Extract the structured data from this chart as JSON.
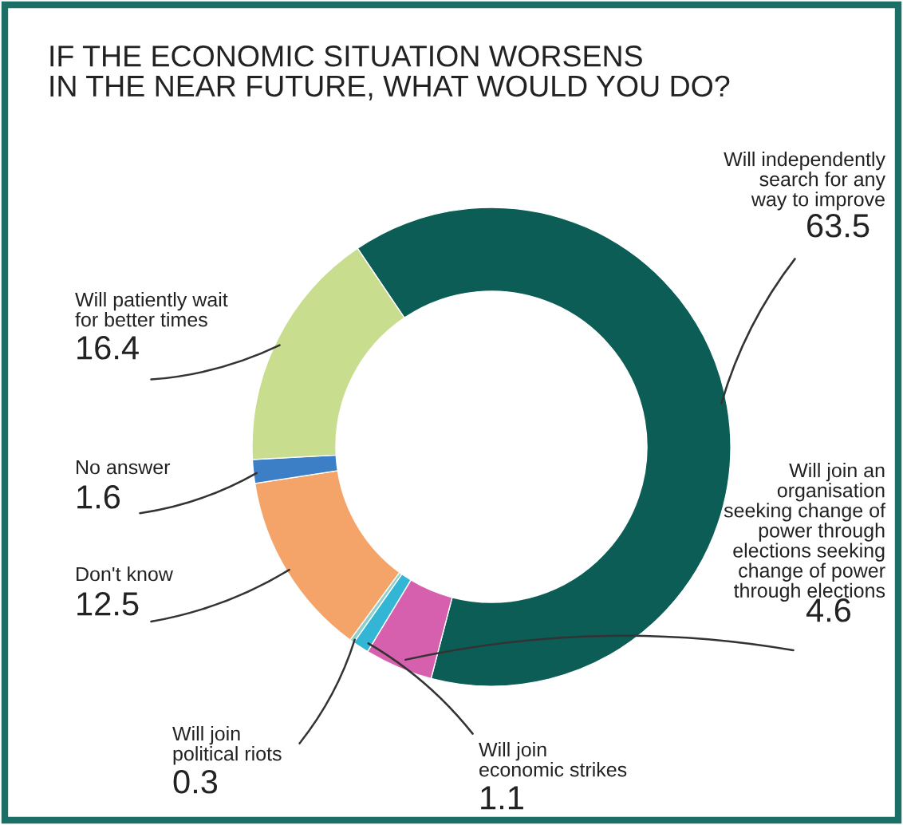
{
  "chart_data": {
    "type": "donut",
    "title": "IF THE ECONOMIC SITUATION WORSENS\nIN THE NEAR FUTURE, WHAT WOULD YOU DO?",
    "categories": [
      "Will independently\nsearch for any\nway to improve",
      "Will join an\norganisation\nseeking change of\npower through\nelections seeking\nchange of power\nthrough elections",
      "Will join\neconomic strikes",
      "Will join\npolitical riots",
      "Don't know",
      "No answer",
      "Will patiently wait\nfor better times"
    ],
    "values": [
      63.5,
      4.6,
      1.1,
      0.3,
      12.5,
      1.6,
      16.4
    ],
    "colors": [
      "#0b5d56",
      "#d660ad",
      "#33b5d6",
      "#8fd0c8",
      "#f4a468",
      "#3d7fc6",
      "#c9dd8f"
    ],
    "data_labels": true
  }
}
